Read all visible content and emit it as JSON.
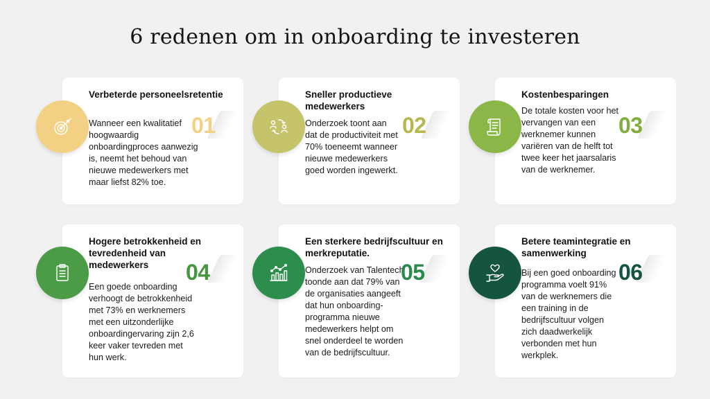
{
  "title": "6 redenen om in onboarding te investeren",
  "cards": [
    {
      "number": "01",
      "title": "Verbeterde personeelsretentie",
      "body": "Wanneer een kwalitatief hoogwaardig onboardingproces aanwezig is, neemt het behoud van nieuwe medewerkers met maar liefst 82% toe.",
      "icon": "target-icon",
      "color": "#f2d184",
      "number_color": "#f2d184"
    },
    {
      "number": "02",
      "title": "Sneller productieve medewerkers",
      "body": "Onderzoek toont aan dat de productiviteit met 70% toeneemt wanneer nieuwe medewerkers goed worden ingewerkt.",
      "icon": "people-exchange-icon",
      "color": "#c6c46a",
      "number_color": "#b7b74f"
    },
    {
      "number": "03",
      "title": "Kostenbesparingen",
      "body": "De totale kosten voor het vervangen van een werknemer kunnen variëren van de helft tot twee keer het jaarsalaris van de werknemer.",
      "icon": "document-scroll-icon",
      "color": "#8ab748",
      "number_color": "#7fae3e"
    },
    {
      "number": "04",
      "title": "Hogere betrokkenheid en tevredenheid van medewerkers",
      "body": "Een goede onboarding verhoogt de betrokkenheid met 73% en werknemers met een uitzonderlijke onboardingervaring zijn 2,6 keer vaker tevreden met hun werk.",
      "icon": "clipboard-icon",
      "color": "#4c9b46",
      "number_color": "#46963f"
    },
    {
      "number": "05",
      "title": "Een sterkere bedrijfscultuur en merkreputatie.",
      "body": "Onderzoek van Talentech toonde aan dat 79% van de organisaties aangeeft dat hun onboarding-programma nieuwe medewerkers helpt om snel onderdeel te worden van de bedrijfscultuur.",
      "icon": "chart-growth-icon",
      "color": "#2c8d4d",
      "number_color": "#2a8a4a"
    },
    {
      "number": "06",
      "title": "Betere teamintegratie en samenwerking",
      "body": "Bij een goed onboarding programma voelt 91% van de werknemers die een training in de bedrijfscultuur volgen zich daadwerkelijk verbonden met hun werkplek.",
      "icon": "heart-hand-icon",
      "color": "#15553f",
      "number_color": "#15553f"
    }
  ]
}
